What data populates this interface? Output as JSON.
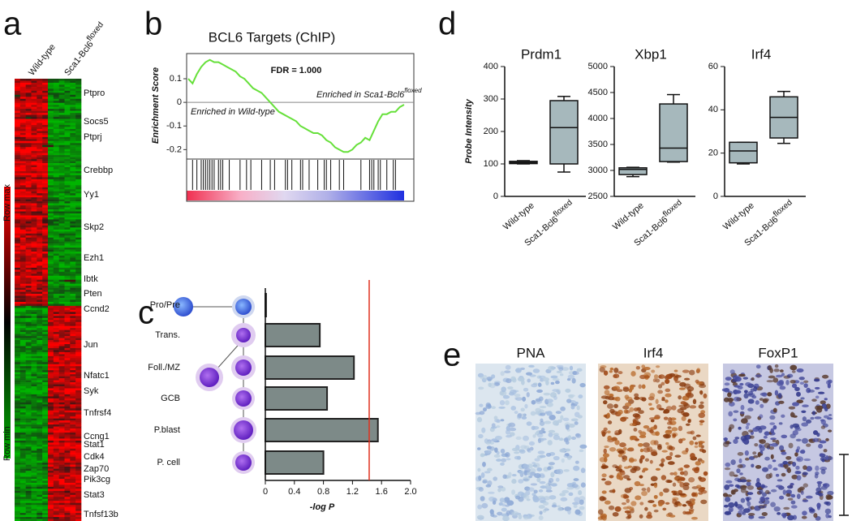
{
  "panel_labels": [
    "a",
    "b",
    "c",
    "d",
    "e"
  ],
  "heatmap": {
    "columns": [
      "Wild-type",
      "Sca1-Bcl6"
    ],
    "column_superscript": "floxed",
    "genes": [
      "Ptpro",
      "Socs5",
      "Ptprj",
      "Crebbp",
      "Yy1",
      "Skp2",
      "Ezh1",
      "Ibtk",
      "Pten",
      "Ccnd2",
      "Jun",
      "Nfatc1",
      "Syk",
      "Tnfrsf4",
      "Ccng1",
      "Stat1",
      "Cdk4",
      "Zap70",
      "Pik3cg",
      "Stat3",
      "Tnfsf13b"
    ],
    "scale_max": "Row max",
    "scale_min": "Row min"
  },
  "chart_data": [
    {
      "type": "line",
      "title": "BCL6 Targets (ChIP)",
      "ylabel": "Enrichment Score",
      "annotation": "FDR = 1.000",
      "left_label": "Enriched in Wild-type",
      "right_label": "Enriched in Sca1-Bcl6",
      "right_label_superscript": "floxed",
      "x": [
        0,
        2,
        4,
        6,
        8,
        10,
        12,
        14,
        16,
        18,
        20,
        22,
        24,
        26,
        28,
        30,
        32,
        34,
        36,
        38,
        40,
        42,
        44,
        46,
        48,
        50,
        52,
        54,
        56,
        58,
        60,
        62,
        64,
        66,
        68,
        70,
        72,
        74,
        76,
        78,
        80,
        82,
        84,
        86,
        88,
        90,
        92,
        94,
        96,
        98,
        100
      ],
      "values": [
        0.1,
        0.08,
        0.12,
        0.15,
        0.17,
        0.18,
        0.17,
        0.17,
        0.16,
        0.15,
        0.14,
        0.13,
        0.11,
        0.1,
        0.08,
        0.06,
        0.05,
        0.04,
        0.02,
        0.0,
        -0.02,
        -0.04,
        -0.05,
        -0.06,
        -0.07,
        -0.08,
        -0.1,
        -0.11,
        -0.12,
        -0.13,
        -0.13,
        -0.14,
        -0.16,
        -0.17,
        -0.19,
        -0.2,
        -0.21,
        -0.21,
        -0.2,
        -0.18,
        -0.17,
        -0.15,
        -0.16,
        -0.12,
        -0.08,
        -0.05,
        -0.05,
        -0.04,
        -0.04,
        -0.02,
        -0.01
      ],
      "color": "#66e03a",
      "xlim": [
        0,
        100
      ],
      "ylim": [
        -0.24,
        0.21
      ],
      "yticks": [
        0.1,
        0,
        -0.1,
        -0.2
      ],
      "hits": [
        2,
        4,
        6,
        7,
        8,
        9,
        10,
        11,
        12,
        14,
        15,
        16,
        19,
        24,
        27,
        29,
        34,
        38,
        40,
        45,
        46,
        48,
        52,
        53,
        56,
        60,
        63,
        64,
        66,
        70,
        72,
        80,
        84,
        85,
        86,
        88,
        89,
        92,
        95,
        96
      ]
    },
    {
      "type": "hbar",
      "xlabel": "-log P",
      "categories": [
        "Pro/Pre",
        "Trans.",
        "Foll./MZ",
        "GCB",
        "P.blast",
        "P. cell"
      ],
      "values": [
        0.01,
        0.75,
        1.22,
        0.85,
        1.55,
        0.8
      ],
      "color": "#7d8a88",
      "xlim": [
        0,
        2
      ],
      "xticks": [
        0,
        0.4,
        0.8,
        1.2,
        1.6,
        {
          "value": 2,
          "label": "2.0"
        }
      ],
      "threshold": 1.43,
      "threshold_color": "#e0301e"
    },
    {
      "type": "box",
      "title": "Prdm1",
      "ylabel": "Probe Intensity",
      "categories": [
        "Wild-type",
        "Sca1-Bcl6"
      ],
      "category_superscript": "floxed",
      "color": "#a6b8bc",
      "ylim": [
        0,
        400
      ],
      "yticks": [
        0,
        100,
        200,
        300,
        400
      ],
      "boxes": [
        {
          "min": 100,
          "q1": 101,
          "median": 104,
          "q3": 108,
          "max": 110
        },
        {
          "min": 75,
          "q1": 100,
          "median": 212,
          "q3": 295,
          "max": 308
        }
      ]
    },
    {
      "type": "box",
      "title": "Xbp1",
      "categories": [
        "Wild-type",
        "Sca1-Bcl6"
      ],
      "category_superscript": "floxed",
      "color": "#a6b8bc",
      "ylim": [
        2500,
        5000
      ],
      "yticks": [
        2500,
        3000,
        3500,
        4000,
        4500,
        5000
      ],
      "boxes": [
        {
          "min": 2880,
          "q1": 2920,
          "median": 3020,
          "q3": 3050,
          "max": 3060
        },
        {
          "min": 3160,
          "q1": 3170,
          "median": 3430,
          "q3": 4280,
          "max": 4460
        }
      ]
    },
    {
      "type": "box",
      "title": "Irf4",
      "categories": [
        "Wild-type",
        "Sca1-Bcl6"
      ],
      "category_superscript": "floxed",
      "color": "#a6b8bc",
      "ylim": [
        0,
        60
      ],
      "yticks": [
        0,
        20,
        40,
        60
      ],
      "boxes": [
        {
          "min": 15,
          "q1": 15.5,
          "median": 21,
          "q3": 25,
          "max": 25
        },
        {
          "min": 24.5,
          "q1": 27,
          "median": 36.5,
          "q3": 46,
          "max": 48.5
        }
      ]
    }
  ],
  "micrographs": [
    "PNA",
    "Irf4",
    "FoxP1"
  ]
}
